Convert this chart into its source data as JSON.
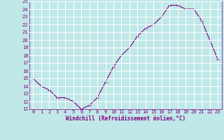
{
  "x": [
    0,
    1,
    2,
    3,
    4,
    5,
    6,
    7,
    8,
    9,
    10,
    11,
    12,
    13,
    14,
    15,
    16,
    17,
    18,
    19,
    20,
    21,
    22,
    23
  ],
  "y": [
    15,
    14,
    13.5,
    12.5,
    12.5,
    12,
    11,
    11.5,
    12.5,
    14.5,
    16.5,
    18.0,
    19,
    20.5,
    21.5,
    22,
    23.0,
    24.5,
    24.5,
    24.0,
    24.0,
    22.5,
    20.0,
    17.5
  ],
  "xlim": [
    -0.5,
    23.5
  ],
  "ylim": [
    11,
    25
  ],
  "yticks": [
    11,
    12,
    13,
    14,
    15,
    16,
    17,
    18,
    19,
    20,
    21,
    22,
    23,
    24,
    25
  ],
  "xticks": [
    0,
    1,
    2,
    3,
    4,
    5,
    6,
    7,
    8,
    9,
    10,
    11,
    12,
    13,
    14,
    15,
    16,
    17,
    18,
    19,
    20,
    21,
    22,
    23
  ],
  "xlabel": "Windchill (Refroidissement éolien,°C)",
  "line_color": "#800080",
  "marker": "+",
  "background_color": "#c0e8e8",
  "grid_color": "#b0d0d0",
  "tick_color": "#800080",
  "label_color": "#800080",
  "tick_fontsize": 5,
  "xlabel_fontsize": 5.5
}
